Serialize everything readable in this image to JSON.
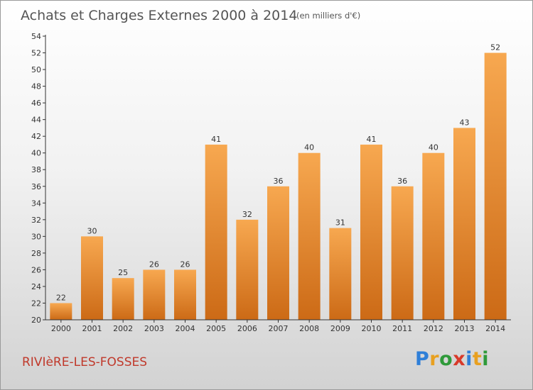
{
  "chart_data": {
    "type": "bar",
    "title": "Achats et Charges Externes 2000 à 2014",
    "subtitle": "(en milliers d'€)",
    "categories": [
      "2000",
      "2001",
      "2002",
      "2003",
      "2004",
      "2005",
      "2006",
      "2007",
      "2008",
      "2009",
      "2010",
      "2011",
      "2012",
      "2013",
      "2014"
    ],
    "values": [
      22,
      30,
      25,
      26,
      26,
      41,
      32,
      36,
      40,
      31,
      41,
      36,
      40,
      43,
      52
    ],
    "ylim": [
      20,
      54
    ],
    "yticks": [
      20,
      22,
      24,
      26,
      28,
      30,
      32,
      34,
      36,
      38,
      40,
      42,
      44,
      46,
      48,
      50,
      52,
      54
    ],
    "grid": false,
    "bar_color": "#f39a3c",
    "bar_color_dark": "#c8681a"
  },
  "location": "RIVIèRE-LES-FOSSES",
  "brand": {
    "text": "Proxiti",
    "letters": [
      {
        "ch": "P",
        "color": "#2f7fd8"
      },
      {
        "ch": "r",
        "color": "#e8a020"
      },
      {
        "ch": "o",
        "color": "#2f9a3a"
      },
      {
        "ch": "x",
        "color": "#d83a2a"
      },
      {
        "ch": "i",
        "color": "#2f7fd8"
      },
      {
        "ch": "t",
        "color": "#e8a020"
      },
      {
        "ch": "i",
        "color": "#2f9a3a"
      }
    ]
  },
  "colors": {
    "title": "#555555",
    "location": "#c0392b",
    "axis": "#333333"
  }
}
